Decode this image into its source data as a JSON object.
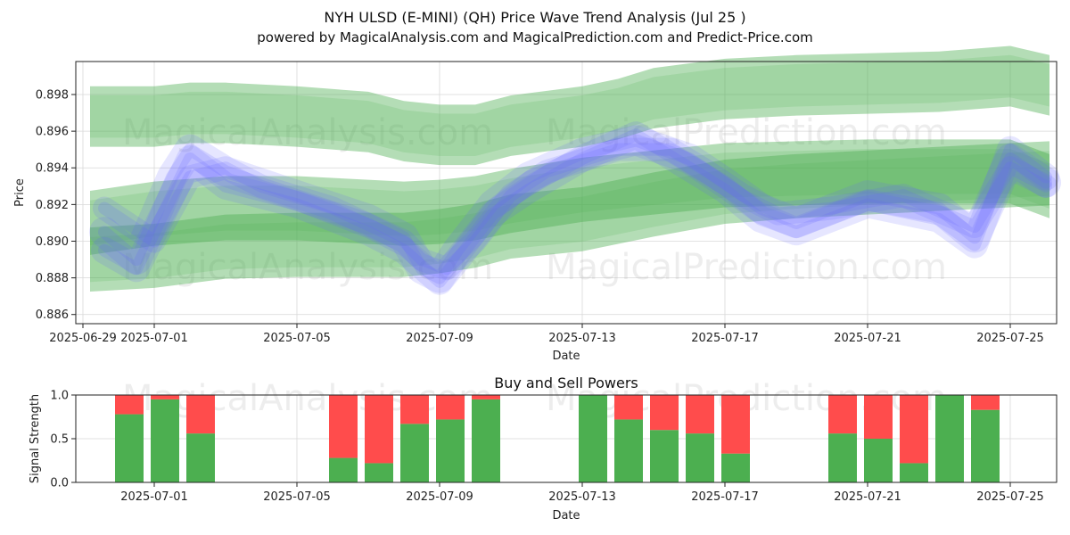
{
  "title": "NYH ULSD (E-MINI) (QH) Price Wave Trend Analysis (Jul 25 )",
  "subtitle": "powered by MagicalAnalysis.com and MagicalPrediction.com and Predict-Price.com",
  "watermarks": [
    "MagicalAnalysis.com",
    "MagicalPrediction.com"
  ],
  "colors": {
    "green_band": "#4caf50",
    "blue_band": "#6666ff",
    "buy": "#4caf50",
    "sell": "#ff4c4c"
  },
  "chart_data": [
    {
      "type": "area",
      "name": "price-wave-trend",
      "xlabel": "Date",
      "ylabel": "Price",
      "xlim_days": [
        -2.2,
        25.3
      ],
      "ylim": [
        0.8855,
        0.8998
      ],
      "x_ticks": [
        "2025-06-29",
        "2025-07-01",
        "2025-07-05",
        "2025-07-09",
        "2025-07-13",
        "2025-07-17",
        "2025-07-21",
        "2025-07-25"
      ],
      "x_tick_days": [
        -2,
        0,
        4,
        8,
        12,
        16,
        20,
        24
      ],
      "y_ticks": [
        "0.886",
        "0.888",
        "0.890",
        "0.892",
        "0.894",
        "0.896",
        "0.898"
      ],
      "y_tick_values": [
        0.886,
        0.888,
        0.89,
        0.892,
        0.894,
        0.896,
        0.898
      ],
      "green_bands": [
        {
          "name": "upper-green-band",
          "days": [
            -1.8,
            0,
            1,
            2,
            4,
            6,
            7,
            8,
            9,
            10,
            12,
            13,
            14,
            16,
            18,
            20,
            22,
            24,
            25.1
          ],
          "values": [
            0.8968,
            0.8968,
            0.897,
            0.897,
            0.8968,
            0.8965,
            0.896,
            0.8958,
            0.8958,
            0.8963,
            0.8968,
            0.8972,
            0.8978,
            0.8983,
            0.8985,
            0.8986,
            0.8987,
            0.899,
            0.8985
          ],
          "width": 0.0033
        },
        {
          "name": "middle-green-band",
          "days": [
            -1.8,
            0,
            2,
            4,
            6,
            7,
            8,
            9,
            10,
            12,
            14,
            16,
            18,
            20,
            22,
            24,
            25.1
          ],
          "values": [
            0.891,
            0.8915,
            0.8918,
            0.8918,
            0.8916,
            0.8915,
            0.8916,
            0.8918,
            0.8922,
            0.8928,
            0.8932,
            0.8936,
            0.8937,
            0.8938,
            0.8938,
            0.8938,
            0.893
          ],
          "width": 0.0035
        },
        {
          "name": "lower-green-band",
          "days": [
            -1.8,
            0,
            2,
            4,
            6,
            7,
            8,
            9,
            10,
            12,
            14,
            16,
            18,
            20,
            22,
            24,
            25.1
          ],
          "values": [
            0.889,
            0.8892,
            0.8897,
            0.8898,
            0.8898,
            0.8898,
            0.89,
            0.8903,
            0.8908,
            0.8912,
            0.892,
            0.8927,
            0.893,
            0.8932,
            0.8934,
            0.8936,
            0.8937
          ],
          "width": 0.0035
        }
      ],
      "blue_waves": [
        {
          "name": "blue-wave-1",
          "days": [
            -1.4,
            -0.5,
            0.5,
            1,
            2,
            4,
            6,
            7,
            7.5,
            8,
            8.5,
            9.5,
            10.5,
            12,
            13.5,
            15,
            16,
            17,
            18,
            20,
            22,
            23,
            24,
            25
          ],
          "values": [
            0.8905,
            0.889,
            0.8935,
            0.895,
            0.8938,
            0.8925,
            0.8912,
            0.8902,
            0.8885,
            0.888,
            0.8895,
            0.892,
            0.8935,
            0.8948,
            0.8955,
            0.8945,
            0.8932,
            0.8918,
            0.891,
            0.8925,
            0.8918,
            0.8902,
            0.8945,
            0.8932
          ]
        },
        {
          "name": "blue-wave-2",
          "days": [
            -1.4,
            -0.5,
            0.5,
            1,
            2,
            4,
            6,
            7,
            8,
            8.5,
            9.5,
            10.5,
            12,
            13.5,
            15,
            16,
            17,
            18,
            20,
            22,
            23,
            24,
            25
          ],
          "values": [
            0.8895,
            0.8885,
            0.8925,
            0.8945,
            0.893,
            0.892,
            0.8905,
            0.8895,
            0.8878,
            0.889,
            0.8915,
            0.8928,
            0.8945,
            0.8958,
            0.894,
            0.8928,
            0.8912,
            0.8905,
            0.892,
            0.8912,
            0.8898,
            0.895,
            0.8935
          ]
        },
        {
          "name": "blue-wave-3",
          "days": [
            -1.4,
            0,
            1,
            2,
            3,
            5,
            7,
            7.5,
            8.2,
            9,
            10,
            11,
            13,
            14.5,
            15.5,
            16.5,
            17.5,
            19,
            21,
            23,
            24,
            25
          ],
          "values": [
            0.8918,
            0.89,
            0.8935,
            0.894,
            0.893,
            0.8918,
            0.89,
            0.889,
            0.8885,
            0.89,
            0.8925,
            0.8938,
            0.895,
            0.895,
            0.8938,
            0.8925,
            0.8915,
            0.8918,
            0.8925,
            0.8908,
            0.894,
            0.893
          ]
        }
      ]
    },
    {
      "type": "bar",
      "name": "buy-and-sell-powers",
      "title": "Buy and Sell Powers",
      "xlabel": "Date",
      "ylabel": "Signal Strength",
      "ylim": [
        0,
        1
      ],
      "y_ticks": [
        "0.0",
        "0.5",
        "1.0"
      ],
      "y_tick_values": [
        0,
        0.5,
        1
      ],
      "x_ticks": [
        "2025-07-01",
        "2025-07-05",
        "2025-07-09",
        "2025-07-13",
        "2025-07-17",
        "2025-07-21",
        "2025-07-25"
      ],
      "x_tick_days": [
        0,
        4,
        8,
        12,
        16,
        20,
        24
      ],
      "xlim_days": [
        -2.2,
        25.3
      ],
      "days": [
        -0.7,
        0.3,
        1.3,
        5.3,
        6.3,
        7.3,
        8.3,
        9.3,
        12.3,
        13.3,
        14.3,
        15.3,
        16.3,
        19.3,
        20.3,
        21.3,
        22.3,
        23.3
      ],
      "series": [
        {
          "name": "Buy",
          "values": [
            0.78,
            0.95,
            0.56,
            0.28,
            0.22,
            0.67,
            0.72,
            0.95,
            1.0,
            0.72,
            0.6,
            0.56,
            0.33,
            0.56,
            0.5,
            0.22,
            1.0,
            0.83
          ]
        },
        {
          "name": "Sell",
          "values": [
            0.22,
            0.05,
            0.44,
            0.72,
            0.78,
            0.33,
            0.28,
            0.05,
            0.0,
            0.28,
            0.4,
            0.44,
            0.67,
            0.44,
            0.5,
            0.78,
            0.0,
            0.17
          ]
        }
      ]
    }
  ]
}
